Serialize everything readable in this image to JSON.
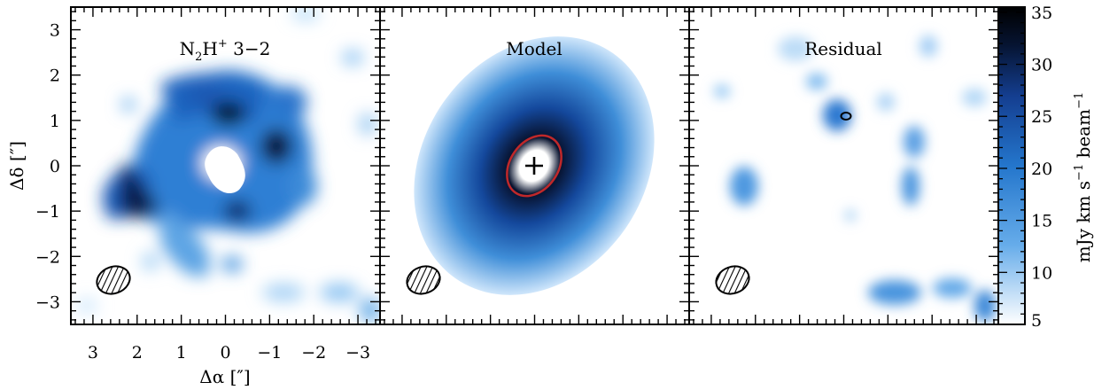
{
  "chart_data": [
    {
      "type": "heatmap",
      "title": "N₂H⁺ 3−2",
      "title_parts": {
        "base1": "N",
        "sub": "2",
        "base2": "H",
        "sup": "+",
        "tail": " 3−2"
      },
      "xlabel": "Δα [″]",
      "ylabel": "Δδ [″]",
      "xlim": [
        3.5,
        -3.5
      ],
      "ylim": [
        -3.5,
        3.5
      ],
      "xticks": [
        3,
        2,
        1,
        0,
        -1,
        -2,
        -3
      ],
      "yticks": [
        -3,
        -2,
        -1,
        0,
        1,
        2,
        3
      ],
      "xtick_labels": [
        "3",
        "2",
        "1",
        "0",
        "−1",
        "−2",
        "−3"
      ],
      "ytick_labels": [
        "−3",
        "−2",
        "−1",
        "0",
        "1",
        "2",
        "3"
      ],
      "beam": {
        "x": 2.9,
        "y": -2.6,
        "major_arcsec": 0.8,
        "minor_arcsec": 0.62,
        "pa_deg": 20
      }
    },
    {
      "type": "heatmap",
      "title": "Model",
      "xlim": [
        3.5,
        -3.5
      ],
      "ylim": [
        -3.5,
        3.5
      ],
      "model": {
        "peak_mJy": 36,
        "inner_radius_arcsec": 0.6,
        "pa_deg": 35
      },
      "contour": {
        "color": "#c0282a",
        "semi_major_arcsec": 0.7,
        "semi_minor_arcsec": 0.5,
        "pa_deg": 30
      },
      "center_marker": "+",
      "beam": {
        "x": 2.9,
        "y": -2.6,
        "major_arcsec": 0.8,
        "minor_arcsec": 0.62,
        "pa_deg": 20
      }
    },
    {
      "type": "heatmap",
      "title": "Residual",
      "xlim": [
        3.5,
        -3.5
      ],
      "ylim": [
        -3.5,
        3.5
      ],
      "contour": {
        "x": 0.9,
        "y": 1.15,
        "color": "#000000"
      },
      "beam": {
        "x": 2.9,
        "y": -2.6,
        "major_arcsec": 0.8,
        "minor_arcsec": 0.62,
        "pa_deg": 20
      }
    }
  ],
  "colorbar": {
    "label": "mJy km s⁻¹ beam⁻¹",
    "label_parts": [
      "mJy km s",
      "−1",
      " beam",
      "−1"
    ],
    "min": 5,
    "max": 35.5,
    "ticks": [
      5,
      10,
      15,
      20,
      25,
      30,
      35
    ],
    "colors": [
      "#ffffff",
      "#4a9ce0",
      "#1d5ab0",
      "#061432",
      "#000000"
    ]
  }
}
